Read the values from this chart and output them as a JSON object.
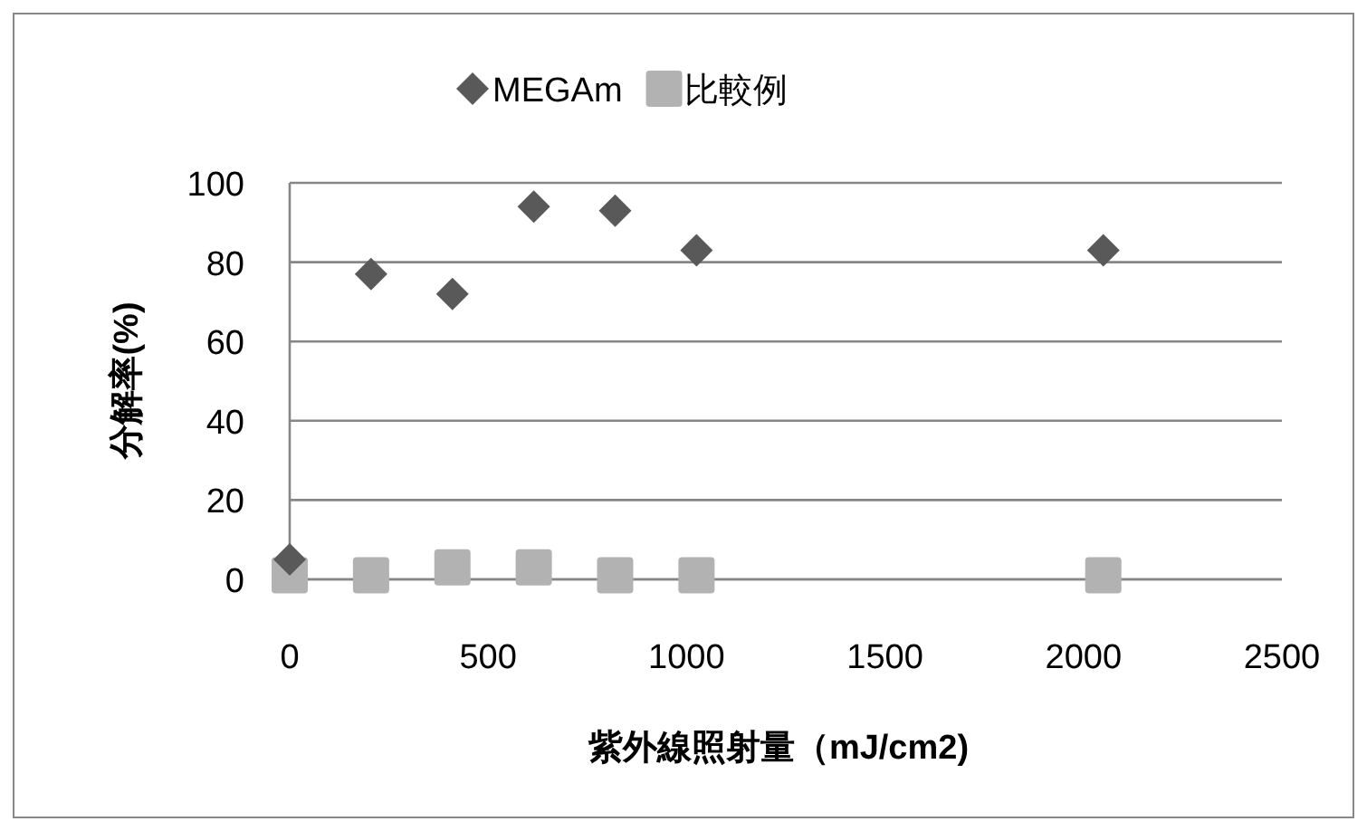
{
  "chart_data": {
    "type": "scatter",
    "xlabel": "紫外線照射量（mJ/cm2)",
    "ylabel": "分解率(%)",
    "xlim": [
      0,
      2500
    ],
    "xticks": [
      0,
      500,
      1000,
      1500,
      2000,
      2500
    ],
    "ylim": [
      0,
      100
    ],
    "yticks": [
      0,
      20,
      40,
      60,
      80,
      100
    ],
    "grid": "y",
    "legend": "top",
    "series": [
      {
        "name": "MEGAm",
        "color": "#595959",
        "marker": "diamond",
        "x": [
          0,
          205,
          410,
          615,
          820,
          1025,
          2050
        ],
        "values": [
          5,
          77,
          72,
          94,
          93,
          83,
          83
        ]
      },
      {
        "name": "比較例",
        "color": "#b2b2b2",
        "marker": "square",
        "x": [
          0,
          205,
          410,
          615,
          820,
          1025,
          2050
        ],
        "values": [
          1,
          1,
          3,
          3,
          1,
          1,
          1
        ]
      }
    ]
  }
}
